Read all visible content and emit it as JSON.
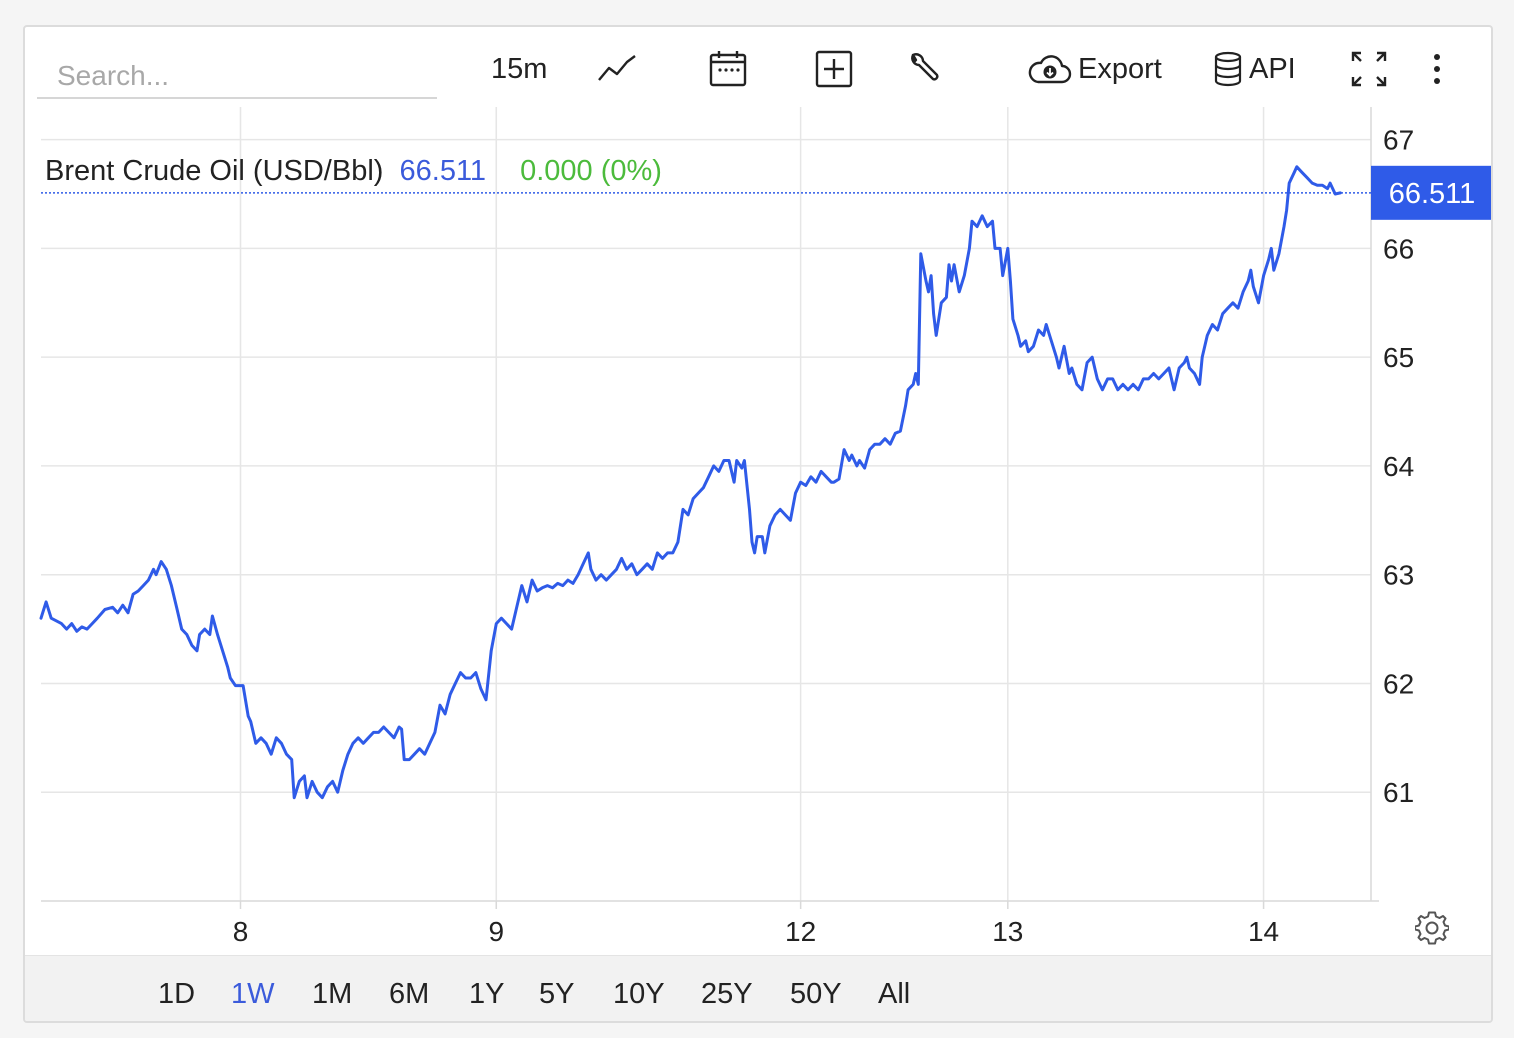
{
  "search": {
    "placeholder": "Search..."
  },
  "toolbar": {
    "interval_label": "15m",
    "export_label": "Export",
    "api_label": "API",
    "icons": [
      "line-chart-icon",
      "calendar-icon",
      "plus-box-icon",
      "wrench-icon",
      "cloud-download-icon",
      "database-icon",
      "fullscreen-icon",
      "more-vertical-icon"
    ]
  },
  "legend": {
    "name": "Brent Crude Oil (USD/Bbl)",
    "price": "66.511",
    "change": "0.000 (0%)"
  },
  "colors": {
    "line": "#2f5be8",
    "price_text": "#3b5bdb",
    "change_text": "#4cbb3c",
    "badge": "#2f5be8",
    "grid": "#e6e6e6"
  },
  "chart_data": {
    "type": "line",
    "title": "Brent Crude Oil (USD/Bbl)",
    "current_value": 66.511,
    "current_value_label": "66.511",
    "ylim": [
      60,
      67.3
    ],
    "yticks": [
      61,
      62,
      63,
      64,
      65,
      66,
      67
    ],
    "ytick_labels": [
      "61",
      "62",
      "63",
      "64",
      "65",
      "66",
      "67"
    ],
    "xlim": [
      0,
      5.2
    ],
    "xticks": [
      0.78,
      1.78,
      2.97,
      3.78,
      4.78
    ],
    "xtick_labels": [
      "8",
      "9",
      "12",
      "13",
      "14"
    ],
    "grid": true,
    "series": [
      {
        "values": [
          [
            0.0,
            62.6
          ],
          [
            0.02,
            62.75
          ],
          [
            0.04,
            62.6
          ],
          [
            0.08,
            62.55
          ],
          [
            0.1,
            62.5
          ],
          [
            0.12,
            62.55
          ],
          [
            0.14,
            62.48
          ],
          [
            0.16,
            62.52
          ],
          [
            0.18,
            62.5
          ],
          [
            0.2,
            62.55
          ],
          [
            0.22,
            62.6
          ],
          [
            0.25,
            62.68
          ],
          [
            0.28,
            62.7
          ],
          [
            0.3,
            62.65
          ],
          [
            0.32,
            62.72
          ],
          [
            0.34,
            62.65
          ],
          [
            0.36,
            62.82
          ],
          [
            0.38,
            62.85
          ],
          [
            0.4,
            62.9
          ],
          [
            0.42,
            62.95
          ],
          [
            0.44,
            63.05
          ],
          [
            0.45,
            63.0
          ],
          [
            0.47,
            63.12
          ],
          [
            0.49,
            63.05
          ],
          [
            0.51,
            62.9
          ],
          [
            0.53,
            62.7
          ],
          [
            0.55,
            62.5
          ],
          [
            0.57,
            62.45
          ],
          [
            0.59,
            62.35
          ],
          [
            0.61,
            62.3
          ],
          [
            0.62,
            62.45
          ],
          [
            0.64,
            62.5
          ],
          [
            0.66,
            62.45
          ],
          [
            0.67,
            62.62
          ],
          [
            0.69,
            62.45
          ],
          [
            0.71,
            62.3
          ],
          [
            0.73,
            62.15
          ],
          [
            0.74,
            62.05
          ],
          [
            0.76,
            61.98
          ],
          [
            0.79,
            61.98
          ],
          [
            0.81,
            61.7
          ],
          [
            0.82,
            61.65
          ],
          [
            0.84,
            61.45
          ],
          [
            0.86,
            61.5
          ],
          [
            0.88,
            61.45
          ],
          [
            0.9,
            61.35
          ],
          [
            0.92,
            61.5
          ],
          [
            0.94,
            61.45
          ],
          [
            0.96,
            61.35
          ],
          [
            0.98,
            61.3
          ],
          [
            0.99,
            60.95
          ],
          [
            1.01,
            61.1
          ],
          [
            1.03,
            61.15
          ],
          [
            1.04,
            60.95
          ],
          [
            1.06,
            61.1
          ],
          [
            1.08,
            61.0
          ],
          [
            1.1,
            60.95
          ],
          [
            1.12,
            61.05
          ],
          [
            1.14,
            61.1
          ],
          [
            1.16,
            61.0
          ],
          [
            1.18,
            61.2
          ],
          [
            1.2,
            61.35
          ],
          [
            1.22,
            61.45
          ],
          [
            1.24,
            61.5
          ],
          [
            1.26,
            61.45
          ],
          [
            1.28,
            61.5
          ],
          [
            1.3,
            61.55
          ],
          [
            1.32,
            61.55
          ],
          [
            1.34,
            61.6
          ],
          [
            1.36,
            61.55
          ],
          [
            1.38,
            61.5
          ],
          [
            1.4,
            61.6
          ],
          [
            1.41,
            61.58
          ],
          [
            1.42,
            61.3
          ],
          [
            1.44,
            61.3
          ],
          [
            1.46,
            61.35
          ],
          [
            1.48,
            61.4
          ],
          [
            1.5,
            61.35
          ],
          [
            1.52,
            61.45
          ],
          [
            1.54,
            61.55
          ],
          [
            1.56,
            61.8
          ],
          [
            1.58,
            61.72
          ],
          [
            1.6,
            61.9
          ],
          [
            1.62,
            62.0
          ],
          [
            1.64,
            62.1
          ],
          [
            1.66,
            62.05
          ],
          [
            1.68,
            62.05
          ],
          [
            1.7,
            62.1
          ],
          [
            1.72,
            61.95
          ],
          [
            1.74,
            61.85
          ],
          [
            1.76,
            62.3
          ],
          [
            1.78,
            62.55
          ],
          [
            1.8,
            62.6
          ],
          [
            1.82,
            62.55
          ],
          [
            1.84,
            62.5
          ],
          [
            1.86,
            62.7
          ],
          [
            1.88,
            62.9
          ],
          [
            1.9,
            62.75
          ],
          [
            1.92,
            62.95
          ],
          [
            1.94,
            62.85
          ],
          [
            1.96,
            62.88
          ],
          [
            1.98,
            62.9
          ],
          [
            2.0,
            62.88
          ],
          [
            2.02,
            62.92
          ],
          [
            2.04,
            62.9
          ],
          [
            2.06,
            62.95
          ],
          [
            2.08,
            62.92
          ],
          [
            2.1,
            63.0
          ],
          [
            2.12,
            63.1
          ],
          [
            2.14,
            63.2
          ],
          [
            2.15,
            63.05
          ],
          [
            2.17,
            62.95
          ],
          [
            2.19,
            63.0
          ],
          [
            2.21,
            62.95
          ],
          [
            2.23,
            63.0
          ],
          [
            2.25,
            63.05
          ],
          [
            2.27,
            63.15
          ],
          [
            2.29,
            63.05
          ],
          [
            2.31,
            63.1
          ],
          [
            2.33,
            63.0
          ],
          [
            2.35,
            63.05
          ],
          [
            2.37,
            63.1
          ],
          [
            2.39,
            63.05
          ],
          [
            2.41,
            63.2
          ],
          [
            2.43,
            63.15
          ],
          [
            2.45,
            63.2
          ],
          [
            2.47,
            63.2
          ],
          [
            2.49,
            63.3
          ],
          [
            2.51,
            63.6
          ],
          [
            2.53,
            63.55
          ],
          [
            2.55,
            63.7
          ],
          [
            2.57,
            63.75
          ],
          [
            2.59,
            63.8
          ],
          [
            2.61,
            63.9
          ],
          [
            2.63,
            64.0
          ],
          [
            2.65,
            63.95
          ],
          [
            2.67,
            64.05
          ],
          [
            2.69,
            64.05
          ],
          [
            2.71,
            63.85
          ],
          [
            2.72,
            64.05
          ],
          [
            2.74,
            63.98
          ],
          [
            2.75,
            64.05
          ],
          [
            2.77,
            63.6
          ],
          [
            2.78,
            63.3
          ],
          [
            2.79,
            63.2
          ],
          [
            2.8,
            63.35
          ],
          [
            2.82,
            63.35
          ],
          [
            2.83,
            63.2
          ],
          [
            2.85,
            63.45
          ],
          [
            2.87,
            63.55
          ],
          [
            2.89,
            63.6
          ],
          [
            2.91,
            63.55
          ],
          [
            2.93,
            63.5
          ],
          [
            2.95,
            63.75
          ],
          [
            2.97,
            63.85
          ],
          [
            2.99,
            63.82
          ],
          [
            3.01,
            63.9
          ],
          [
            3.03,
            63.85
          ],
          [
            3.05,
            63.95
          ],
          [
            3.07,
            63.9
          ],
          [
            3.09,
            63.85
          ],
          [
            3.1,
            63.85
          ],
          [
            3.12,
            63.88
          ],
          [
            3.14,
            64.15
          ],
          [
            3.16,
            64.05
          ],
          [
            3.17,
            64.1
          ],
          [
            3.19,
            64.0
          ],
          [
            3.2,
            64.05
          ],
          [
            3.22,
            63.98
          ],
          [
            3.24,
            64.15
          ],
          [
            3.26,
            64.2
          ],
          [
            3.28,
            64.2
          ],
          [
            3.3,
            64.25
          ],
          [
            3.32,
            64.2
          ],
          [
            3.34,
            64.3
          ],
          [
            3.36,
            64.32
          ],
          [
            3.38,
            64.55
          ],
          [
            3.39,
            64.7
          ],
          [
            3.41,
            64.75
          ],
          [
            3.42,
            64.85
          ],
          [
            3.43,
            64.75
          ],
          [
            3.44,
            65.95
          ],
          [
            3.46,
            65.7
          ],
          [
            3.47,
            65.6
          ],
          [
            3.48,
            65.75
          ],
          [
            3.49,
            65.4
          ],
          [
            3.5,
            65.2
          ],
          [
            3.52,
            65.5
          ],
          [
            3.54,
            65.55
          ],
          [
            3.55,
            65.85
          ],
          [
            3.56,
            65.7
          ],
          [
            3.57,
            65.85
          ],
          [
            3.59,
            65.6
          ],
          [
            3.61,
            65.75
          ],
          [
            3.63,
            66.0
          ],
          [
            3.64,
            66.25
          ],
          [
            3.66,
            66.2
          ],
          [
            3.68,
            66.3
          ],
          [
            3.7,
            66.2
          ],
          [
            3.72,
            66.25
          ],
          [
            3.73,
            66.0
          ],
          [
            3.75,
            66.0
          ],
          [
            3.76,
            65.75
          ],
          [
            3.78,
            66.0
          ],
          [
            3.79,
            65.7
          ],
          [
            3.8,
            65.35
          ],
          [
            3.82,
            65.2
          ],
          [
            3.83,
            65.1
          ],
          [
            3.85,
            65.15
          ],
          [
            3.86,
            65.05
          ],
          [
            3.88,
            65.1
          ],
          [
            3.9,
            65.25
          ],
          [
            3.92,
            65.2
          ],
          [
            3.93,
            65.3
          ],
          [
            3.95,
            65.15
          ],
          [
            3.97,
            65.0
          ],
          [
            3.98,
            64.9
          ],
          [
            4.0,
            65.1
          ],
          [
            4.02,
            64.85
          ],
          [
            4.03,
            64.9
          ],
          [
            4.05,
            64.75
          ],
          [
            4.07,
            64.7
          ],
          [
            4.09,
            64.95
          ],
          [
            4.11,
            65.0
          ],
          [
            4.13,
            64.8
          ],
          [
            4.15,
            64.7
          ],
          [
            4.17,
            64.8
          ],
          [
            4.19,
            64.8
          ],
          [
            4.21,
            64.7
          ],
          [
            4.23,
            64.75
          ],
          [
            4.25,
            64.7
          ],
          [
            4.27,
            64.75
          ],
          [
            4.29,
            64.7
          ],
          [
            4.31,
            64.8
          ],
          [
            4.33,
            64.8
          ],
          [
            4.35,
            64.85
          ],
          [
            4.37,
            64.8
          ],
          [
            4.39,
            64.85
          ],
          [
            4.41,
            64.9
          ],
          [
            4.43,
            64.7
          ],
          [
            4.45,
            64.9
          ],
          [
            4.47,
            64.95
          ],
          [
            4.48,
            65.0
          ],
          [
            4.49,
            64.9
          ],
          [
            4.51,
            64.85
          ],
          [
            4.53,
            64.75
          ],
          [
            4.54,
            65.0
          ],
          [
            4.56,
            65.2
          ],
          [
            4.58,
            65.3
          ],
          [
            4.6,
            65.25
          ],
          [
            4.62,
            65.4
          ],
          [
            4.64,
            65.45
          ],
          [
            4.66,
            65.5
          ],
          [
            4.68,
            65.45
          ],
          [
            4.7,
            65.6
          ],
          [
            4.72,
            65.7
          ],
          [
            4.73,
            65.8
          ],
          [
            4.74,
            65.65
          ],
          [
            4.76,
            65.5
          ],
          [
            4.78,
            65.75
          ],
          [
            4.8,
            65.9
          ],
          [
            4.81,
            66.0
          ],
          [
            4.82,
            65.8
          ],
          [
            4.84,
            65.95
          ],
          [
            4.86,
            66.2
          ],
          [
            4.87,
            66.35
          ],
          [
            4.88,
            66.6
          ],
          [
            4.9,
            66.7
          ],
          [
            4.91,
            66.75
          ],
          [
            4.93,
            66.7
          ],
          [
            4.95,
            66.65
          ],
          [
            4.97,
            66.6
          ],
          [
            4.99,
            66.58
          ],
          [
            5.01,
            66.58
          ],
          [
            5.03,
            66.55
          ],
          [
            5.04,
            66.6
          ],
          [
            5.06,
            66.5
          ],
          [
            5.08,
            66.51
          ]
        ]
      }
    ]
  },
  "ranges": {
    "items": [
      "1D",
      "1W",
      "1M",
      "6M",
      "1Y",
      "5Y",
      "10Y",
      "25Y",
      "50Y",
      "All"
    ],
    "active": "1W"
  }
}
